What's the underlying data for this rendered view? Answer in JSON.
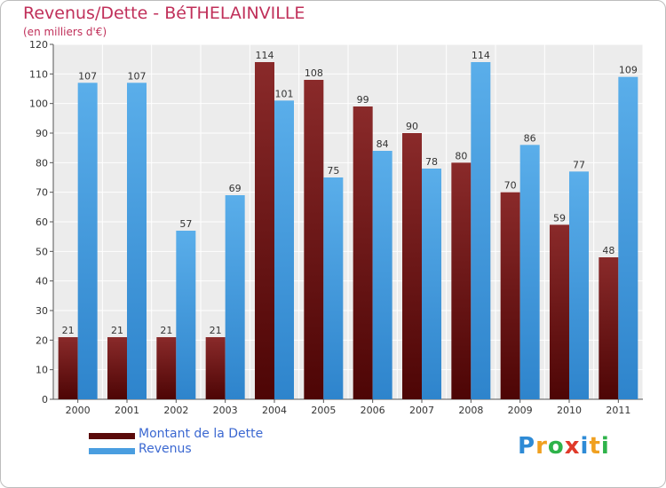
{
  "chart_data": {
    "type": "bar",
    "title": "Revenus/Dette - BéTHELAINVILLE",
    "subtitle": "(en milliers d'€)",
    "categories": [
      "2000",
      "2001",
      "2002",
      "2003",
      "2004",
      "2005",
      "2006",
      "2007",
      "2008",
      "2009",
      "2010",
      "2011"
    ],
    "series": [
      {
        "name": "Montant de la Dette",
        "color": "#7b1a1a",
        "values": [
          21,
          21,
          21,
          21,
          114,
          108,
          99,
          90,
          80,
          70,
          59,
          48
        ]
      },
      {
        "name": "Revenus",
        "color": "#4a9ee0",
        "values": [
          107,
          107,
          57,
          69,
          101,
          75,
          84,
          78,
          114,
          86,
          77,
          109
        ]
      }
    ],
    "ylim": [
      0,
      120
    ],
    "yticks": [
      0,
      10,
      20,
      30,
      40,
      50,
      60,
      70,
      80,
      90,
      100,
      110,
      120
    ],
    "grid": true,
    "legend": "bottom-left"
  },
  "logo": {
    "text": "Proxiti",
    "letters": [
      "P",
      "r",
      "o",
      "x",
      "i",
      "t",
      "i"
    ],
    "colors": [
      "#2e8bd6",
      "#f0a020",
      "#2eb34a",
      "#e03a2a",
      "#2e8bd6",
      "#f0a020",
      "#2eb34a"
    ]
  }
}
